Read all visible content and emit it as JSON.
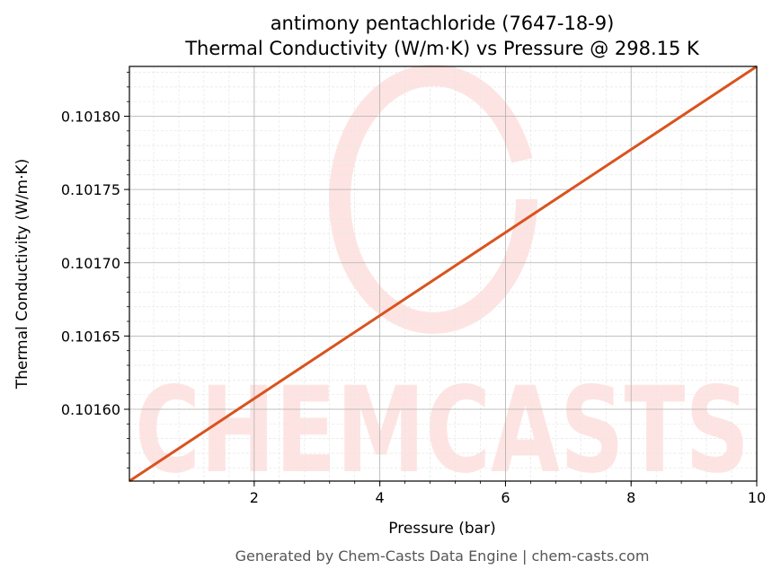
{
  "colors": {
    "line": "#d9531e",
    "grid_major": "#b0b0b0",
    "grid_minor": "#e6e6e6",
    "watermark": "#fde4e2",
    "footer": "#555555"
  },
  "watermark": {
    "text": "CHEMCASTS"
  },
  "footer": {
    "text": "Generated by Chem-Casts Data Engine | chem-casts.com"
  },
  "chart_data": {
    "type": "line",
    "title": "antimony pentachloride (7647-18-9)",
    "subtitle": "Thermal Conductivity (W/m·K) vs Pressure @ 298.15 K",
    "xlabel": "Pressure (bar)",
    "ylabel": "Thermal Conductivity (W/m·K)",
    "xlim": [
      0.01325,
      10.0
    ],
    "ylim": [
      0.101551,
      0.101834
    ],
    "grid": true,
    "x_ticks": [
      2,
      4,
      6,
      8,
      10
    ],
    "x_tick_labels": [
      "2",
      "4",
      "6",
      "8",
      "10"
    ],
    "y_ticks": [
      0.1016,
      0.10165,
      0.1017,
      0.10175,
      0.1018
    ],
    "y_tick_labels": [
      "0.10160",
      "0.10165",
      "0.10170",
      "0.10175",
      "0.10180"
    ],
    "series": [
      {
        "x": [
          0.01325,
          10.0
        ],
        "y": [
          0.101551,
          0.101834
        ]
      }
    ]
  }
}
